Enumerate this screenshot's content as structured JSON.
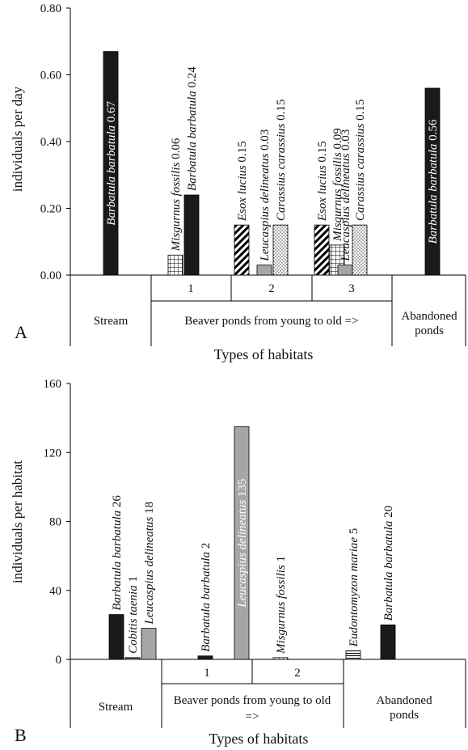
{
  "colors": {
    "black": "#1a1a1a",
    "gray": "#a6a6a6",
    "axis": "#000000"
  },
  "chart_data": [
    {
      "type": "bar",
      "panel_label": "A",
      "ylabel": "individuals per day",
      "xlabel": "Types of habitats",
      "ylim": [
        0,
        0.8
      ],
      "yticks": [
        "0.00",
        "0.20",
        "0.40",
        "0.60",
        "0.80"
      ],
      "groups": [
        {
          "label": "Stream",
          "sublabel": ""
        },
        {
          "label": "Beaver ponds from young to old =>",
          "sublabel": ""
        },
        {
          "label": "Abandoned ponds",
          "sublabel": ""
        }
      ],
      "subgroups": [
        "1",
        "2",
        "3"
      ],
      "bars": [
        {
          "species": "Barbatula barbatula",
          "value": 0.67,
          "label": "0.67",
          "pattern": "black",
          "group": "Stream"
        },
        {
          "species": "Misgurnus fossilis",
          "value": 0.06,
          "label": "0.06",
          "pattern": "grid",
          "group": "1"
        },
        {
          "species": "Barbatula barbatula",
          "value": 0.24,
          "label": "0.24",
          "pattern": "black",
          "group": "1"
        },
        {
          "species": "Esox lucius",
          "value": 0.15,
          "label": "0.15",
          "pattern": "diag",
          "group": "2"
        },
        {
          "species": "Leucaspius delineatus",
          "value": 0.03,
          "label": "0.03",
          "pattern": "gray",
          "group": "2"
        },
        {
          "species": "Carassius carassius",
          "value": 0.15,
          "label": "0.15",
          "pattern": "dots",
          "group": "2"
        },
        {
          "species": "Esox lucius",
          "value": 0.15,
          "label": "0.15",
          "pattern": "diag",
          "group": "3"
        },
        {
          "species": "Misgurnus fossilis",
          "value": 0.09,
          "label": "0.09",
          "pattern": "grid",
          "group": "3"
        },
        {
          "species": "Leucaspius delineatus",
          "value": 0.03,
          "label": "0.03",
          "pattern": "gray",
          "group": "3"
        },
        {
          "species": "Carassius carassius",
          "value": 0.15,
          "label": "0.15",
          "pattern": "dots",
          "group": "3"
        },
        {
          "species": "Barbatula barbatula",
          "value": 0.56,
          "label": "0.56",
          "pattern": "black",
          "group": "Abandoned ponds"
        }
      ]
    },
    {
      "type": "bar",
      "panel_label": "B",
      "ylabel": "individuals per habitat",
      "xlabel": "Types of habitats",
      "ylim": [
        0,
        160
      ],
      "yticks": [
        "0",
        "40",
        "80",
        "120",
        "160"
      ],
      "groups": [
        {
          "label": "Stream",
          "sublabel": ""
        },
        {
          "label": "Beaver ponds from young to old =>",
          "sublabel": ""
        },
        {
          "label": "Abandoned ponds",
          "sublabel": ""
        }
      ],
      "subgroups": [
        "1",
        "2"
      ],
      "bars": [
        {
          "species": "Barbatula barbatula",
          "value": 26,
          "label": "26",
          "pattern": "black",
          "group": "Stream"
        },
        {
          "species": "Cobitis taenia",
          "value": 1,
          "label": "1",
          "pattern": "hlines",
          "group": "Stream"
        },
        {
          "species": "Leucaspius delineatus",
          "value": 18,
          "label": "18",
          "pattern": "gray",
          "group": "Stream"
        },
        {
          "species": "Barbatula barbatula",
          "value": 2,
          "label": "2",
          "pattern": "black",
          "group": "1"
        },
        {
          "species": "Leucaspius delineatus",
          "value": 135,
          "label": "135",
          "pattern": "gray",
          "group": "1"
        },
        {
          "species": "Misgurnus fossilis",
          "value": 1,
          "label": "1",
          "pattern": "grid",
          "group": "2"
        },
        {
          "species": "Eudontomyzon mariae",
          "value": 5,
          "label": "5",
          "pattern": "hlines",
          "group": "Abandoned ponds"
        },
        {
          "species": "Barbatula barbatula",
          "value": 20,
          "label": "20",
          "pattern": "black",
          "group": "Abandoned ponds"
        }
      ]
    }
  ]
}
